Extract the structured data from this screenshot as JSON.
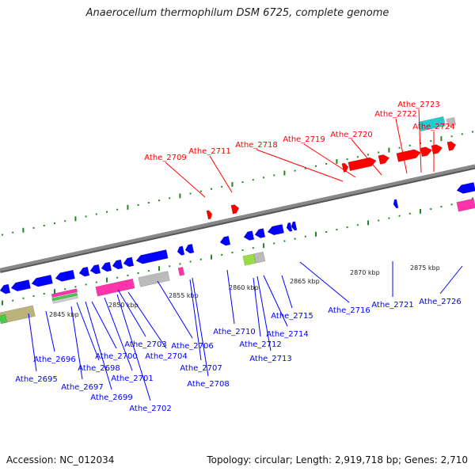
{
  "title": "Anaerocellum thermophilum DSM 6725, complete genome",
  "footer": {
    "accession": "Accession: NC_012034",
    "summary": "Topology: circular; Length: 2,919,718 bp; Genes: 2,710"
  },
  "colors": {
    "forward_label": "#ff0000",
    "reverse_label": "#0000ff",
    "forward_gene": "#ff0000",
    "reverse_gene": "#0000ff",
    "rna": "#ff33aa",
    "teal": "#22cccc",
    "grey": "#bbbbbb",
    "backbone": "#888888",
    "tick": "#228822"
  },
  "kbp_marks": [
    "2845 kbp",
    "2850 kbp",
    "2855 kbp",
    "2860 kbp",
    "2865 kbp",
    "2870 kbp",
    "2875 kbp"
  ],
  "forward_genes": [
    "Athe_2709",
    "Athe_2711",
    "Athe_2718",
    "Athe_2719",
    "Athe_2720",
    "Athe_2722",
    "Athe_2723",
    "Athe_2724"
  ],
  "reverse_genes": [
    "Athe_2695",
    "Athe_2696",
    "Athe_2697",
    "Athe_2698",
    "Athe_2699",
    "Athe_2700",
    "Athe_2701",
    "Athe_2702",
    "Athe_2703",
    "Athe_2704",
    "Athe_2706",
    "Athe_2707",
    "Athe_2708",
    "Athe_2710",
    "Athe_2712",
    "Athe_2713",
    "Athe_2714",
    "Athe_2715",
    "Athe_2716",
    "Athe_2721",
    "Athe_2726"
  ]
}
